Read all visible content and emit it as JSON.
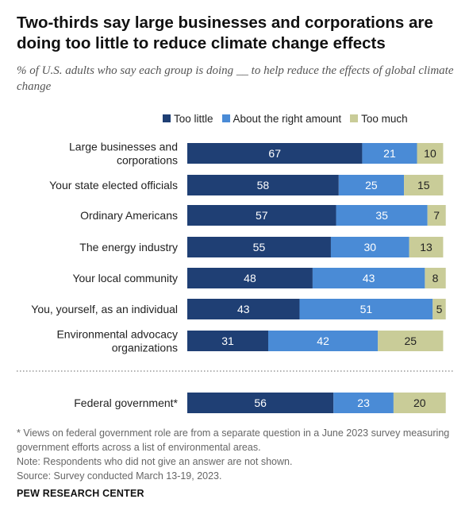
{
  "title": "Two-thirds say large businesses and corporations are doing too little to reduce climate change effects",
  "subtitle": "% of U.S. adults who say each group is doing __ to help reduce the effects of global climate change",
  "legend": [
    {
      "name": "Too little",
      "color": "#1f3f74"
    },
    {
      "name": "About the right amount",
      "color": "#4a8bd6"
    },
    {
      "name": "Too much",
      "color": "#c9cc98"
    }
  ],
  "chart_data": {
    "type": "bar",
    "orientation": "horizontal",
    "stacked": true,
    "categories": [
      [
        "Large businesses and",
        "corporations"
      ],
      [
        "Your state elected officials"
      ],
      [
        "Ordinary Americans"
      ],
      [
        "The energy industry"
      ],
      [
        "Your local community"
      ],
      [
        "You, yourself, as an individual"
      ],
      [
        "Environmental advocacy",
        "organizations"
      ],
      [
        "Federal government*"
      ]
    ],
    "series": [
      {
        "name": "Too little",
        "values": [
          67,
          58,
          57,
          55,
          48,
          43,
          31,
          56
        ]
      },
      {
        "name": "About the right amount",
        "values": [
          21,
          25,
          35,
          30,
          43,
          51,
          42,
          23
        ]
      },
      {
        "name": "Too much",
        "values": [
          10,
          15,
          7,
          13,
          8,
          5,
          25,
          20
        ]
      }
    ],
    "xlim": [
      0,
      100
    ],
    "separator_before_index": 7,
    "legend_position": "top"
  },
  "notes": [
    "* Views on federal government role are from a separate question in a June 2023 survey measuring government efforts across a list of environmental areas.",
    "Note: Respondents who did not give an answer are not shown.",
    "Source: Survey conducted March 13-19, 2023."
  ],
  "brand": "PEW RESEARCH CENTER"
}
